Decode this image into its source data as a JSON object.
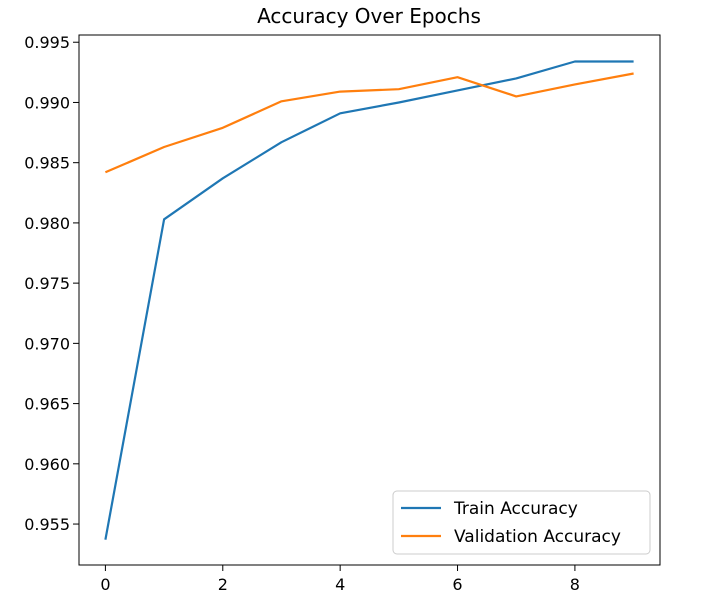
{
  "chart_data": {
    "type": "line",
    "title": "Accuracy Over Epochs",
    "xlabel": "",
    "ylabel": "",
    "xlim": [
      -0.45,
      9.45
    ],
    "ylim": [
      0.9516,
      0.9956
    ],
    "x_ticks": [
      0,
      2,
      4,
      6,
      8
    ],
    "y_ticks": [
      0.955,
      0.96,
      0.965,
      0.97,
      0.975,
      0.98,
      0.985,
      0.99,
      0.995
    ],
    "x_tick_labels": [
      "0",
      "2",
      "4",
      "6",
      "8"
    ],
    "y_tick_labels": [
      "0.955",
      "0.960",
      "0.965",
      "0.970",
      "0.975",
      "0.980",
      "0.985",
      "0.990",
      "0.995"
    ],
    "grid": false,
    "legend_position": "lower-right",
    "x": [
      0,
      1,
      2,
      3,
      4,
      5,
      6,
      7,
      8,
      9
    ],
    "series": [
      {
        "name": "Train Accuracy",
        "color": "#1f77b4",
        "values": [
          0.9537,
          0.9803,
          0.9837,
          0.9867,
          0.9891,
          0.99,
          0.991,
          0.992,
          0.9934,
          0.9934
        ]
      },
      {
        "name": "Validation Accuracy",
        "color": "#ff7f0e",
        "values": [
          0.9842,
          0.9863,
          0.9879,
          0.9901,
          0.9909,
          0.9911,
          0.9921,
          0.9905,
          0.9915,
          0.9924
        ]
      }
    ]
  }
}
